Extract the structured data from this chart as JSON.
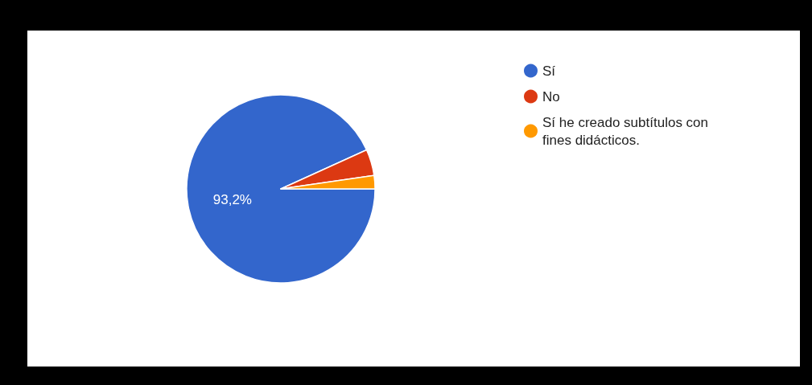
{
  "chart_data": {
    "type": "pie",
    "categories": [
      "Sí",
      "No",
      "Sí he creado subtítulos con fines didácticos."
    ],
    "values": [
      93.2,
      4.5,
      2.3
    ],
    "colors": [
      "#3366cc",
      "#dc3912",
      "#ff9900"
    ],
    "value_labels": [
      "93,2%",
      null,
      null
    ],
    "legend": "top right"
  }
}
